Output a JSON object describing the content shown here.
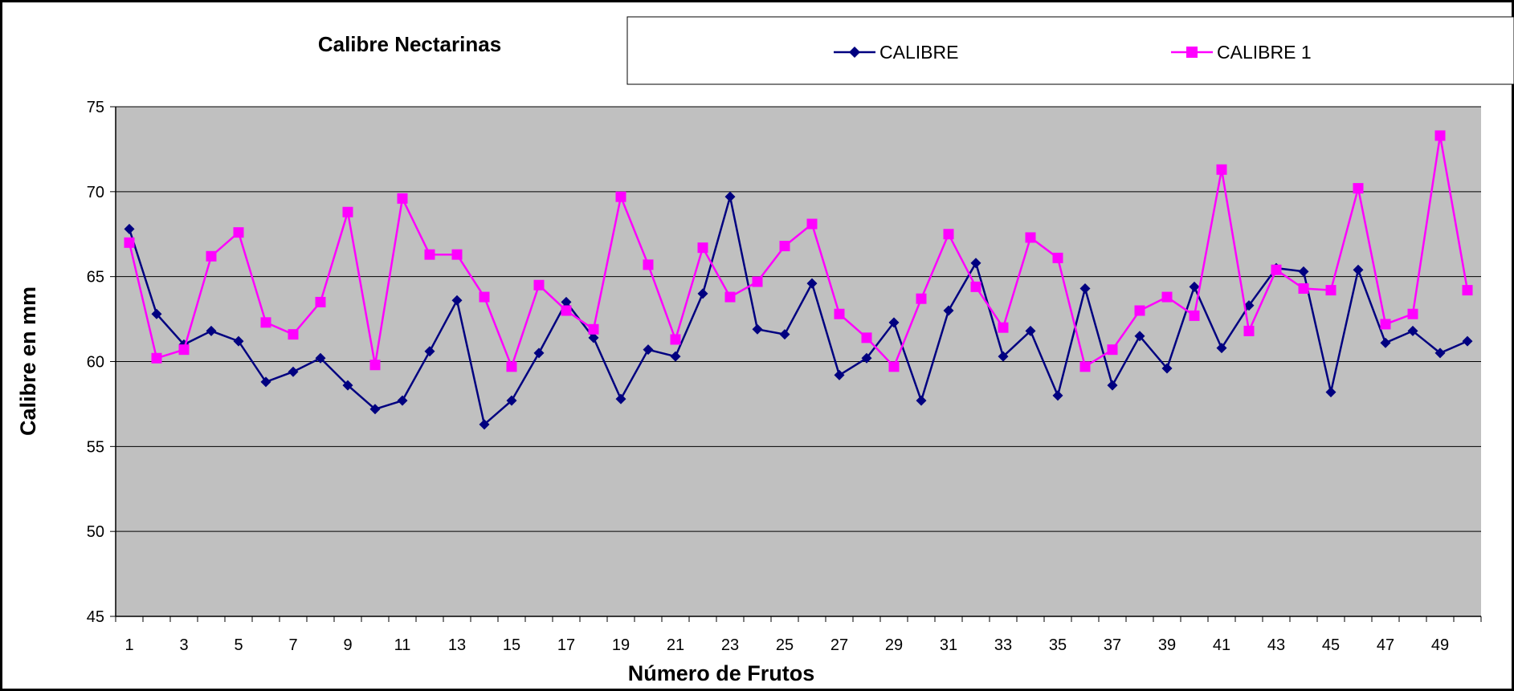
{
  "chart_data": {
    "type": "line",
    "title": "Calibre Nectarinas",
    "xlabel": "Número de Frutos",
    "ylabel": "Calibre en mm",
    "ylim": [
      45,
      75
    ],
    "yticks": [
      45,
      50,
      55,
      60,
      65,
      70,
      75
    ],
    "x": [
      1,
      2,
      3,
      4,
      5,
      6,
      7,
      8,
      9,
      10,
      11,
      12,
      13,
      14,
      15,
      16,
      17,
      18,
      19,
      20,
      21,
      22,
      23,
      24,
      25,
      26,
      27,
      28,
      29,
      30,
      31,
      32,
      33,
      34,
      35,
      36,
      37,
      38,
      39,
      40,
      41,
      42,
      43,
      44,
      45,
      46,
      47,
      48,
      49,
      50
    ],
    "xtick_labels": [
      "1",
      "3",
      "5",
      "7",
      "9",
      "11",
      "13",
      "15",
      "17",
      "19",
      "21",
      "23",
      "25",
      "27",
      "29",
      "31",
      "33",
      "35",
      "37",
      "39",
      "41",
      "43",
      "45",
      "47",
      "49"
    ],
    "grid": true,
    "legend_position": "top",
    "plot_background": "#C0C0C0",
    "series": [
      {
        "name": "CALIBRE",
        "color": "#000080",
        "marker": "diamond",
        "values": [
          67.8,
          62.8,
          61.0,
          61.8,
          61.2,
          58.8,
          59.4,
          60.2,
          58.6,
          57.2,
          57.7,
          60.6,
          63.6,
          56.3,
          57.7,
          60.5,
          63.5,
          61.4,
          57.8,
          60.7,
          60.3,
          64.0,
          69.7,
          61.9,
          61.6,
          64.6,
          59.2,
          60.2,
          62.3,
          57.7,
          63.0,
          65.8,
          60.3,
          61.8,
          58.0,
          64.3,
          58.6,
          61.5,
          59.6,
          64.4,
          60.8,
          63.3,
          65.5,
          65.3,
          58.2,
          65.4,
          61.1,
          61.8,
          60.5,
          61.2
        ]
      },
      {
        "name": "CALIBRE 1",
        "color": "#FF00FF",
        "marker": "square",
        "values": [
          67.0,
          60.2,
          60.7,
          66.2,
          67.6,
          62.3,
          61.6,
          63.5,
          68.8,
          59.8,
          69.6,
          66.3,
          66.3,
          63.8,
          59.7,
          64.5,
          63.0,
          61.9,
          69.7,
          65.7,
          61.3,
          66.7,
          63.8,
          64.7,
          66.8,
          68.1,
          62.8,
          61.4,
          59.7,
          63.7,
          67.5,
          64.4,
          62.0,
          67.3,
          66.1,
          59.7,
          60.7,
          63.0,
          63.8,
          62.7,
          71.3,
          61.8,
          65.4,
          64.3,
          64.2,
          70.2,
          62.2,
          62.8,
          73.3,
          64.2
        ]
      }
    ]
  }
}
